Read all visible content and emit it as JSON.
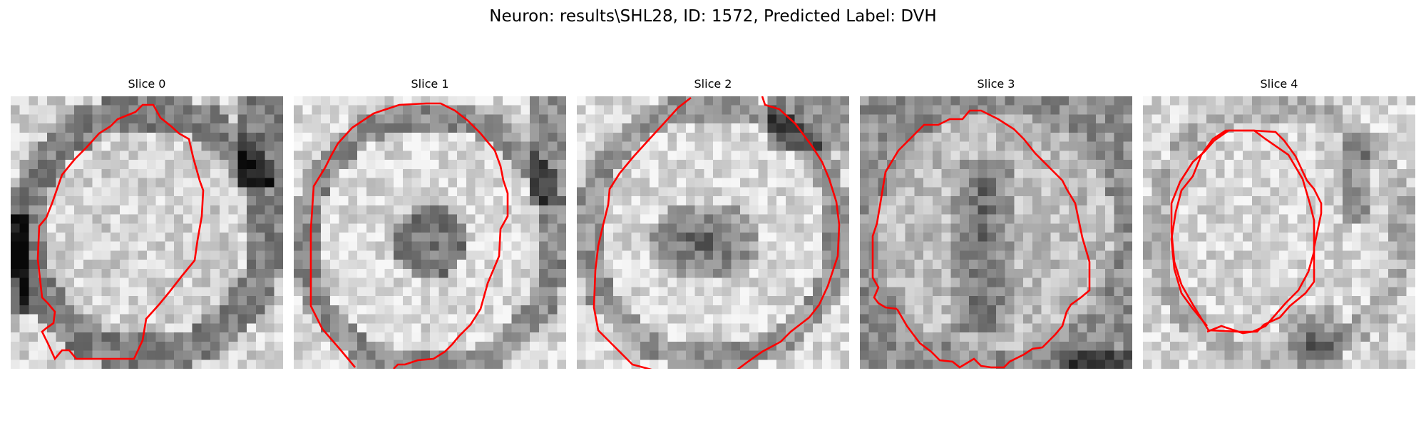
{
  "title": "Neuron: results\\SHL28, ID: 1572, Predicted Label: DVH",
  "contour_color": "#ff0000",
  "slices": [
    {
      "label": "Slice 0",
      "dark_region": "ring",
      "contour": "closed-ring"
    },
    {
      "label": "Slice 1",
      "dark_region": "small-center",
      "contour": "open-arc"
    },
    {
      "label": "Slice 2",
      "dark_region": "large-center",
      "contour": "open-arc"
    },
    {
      "label": "Slice 3",
      "dark_region": "vertical-streak",
      "contour": "closed-ring"
    },
    {
      "label": "Slice 4",
      "dark_region": "lower-right-blob",
      "contour": "closed-ring"
    }
  ]
}
